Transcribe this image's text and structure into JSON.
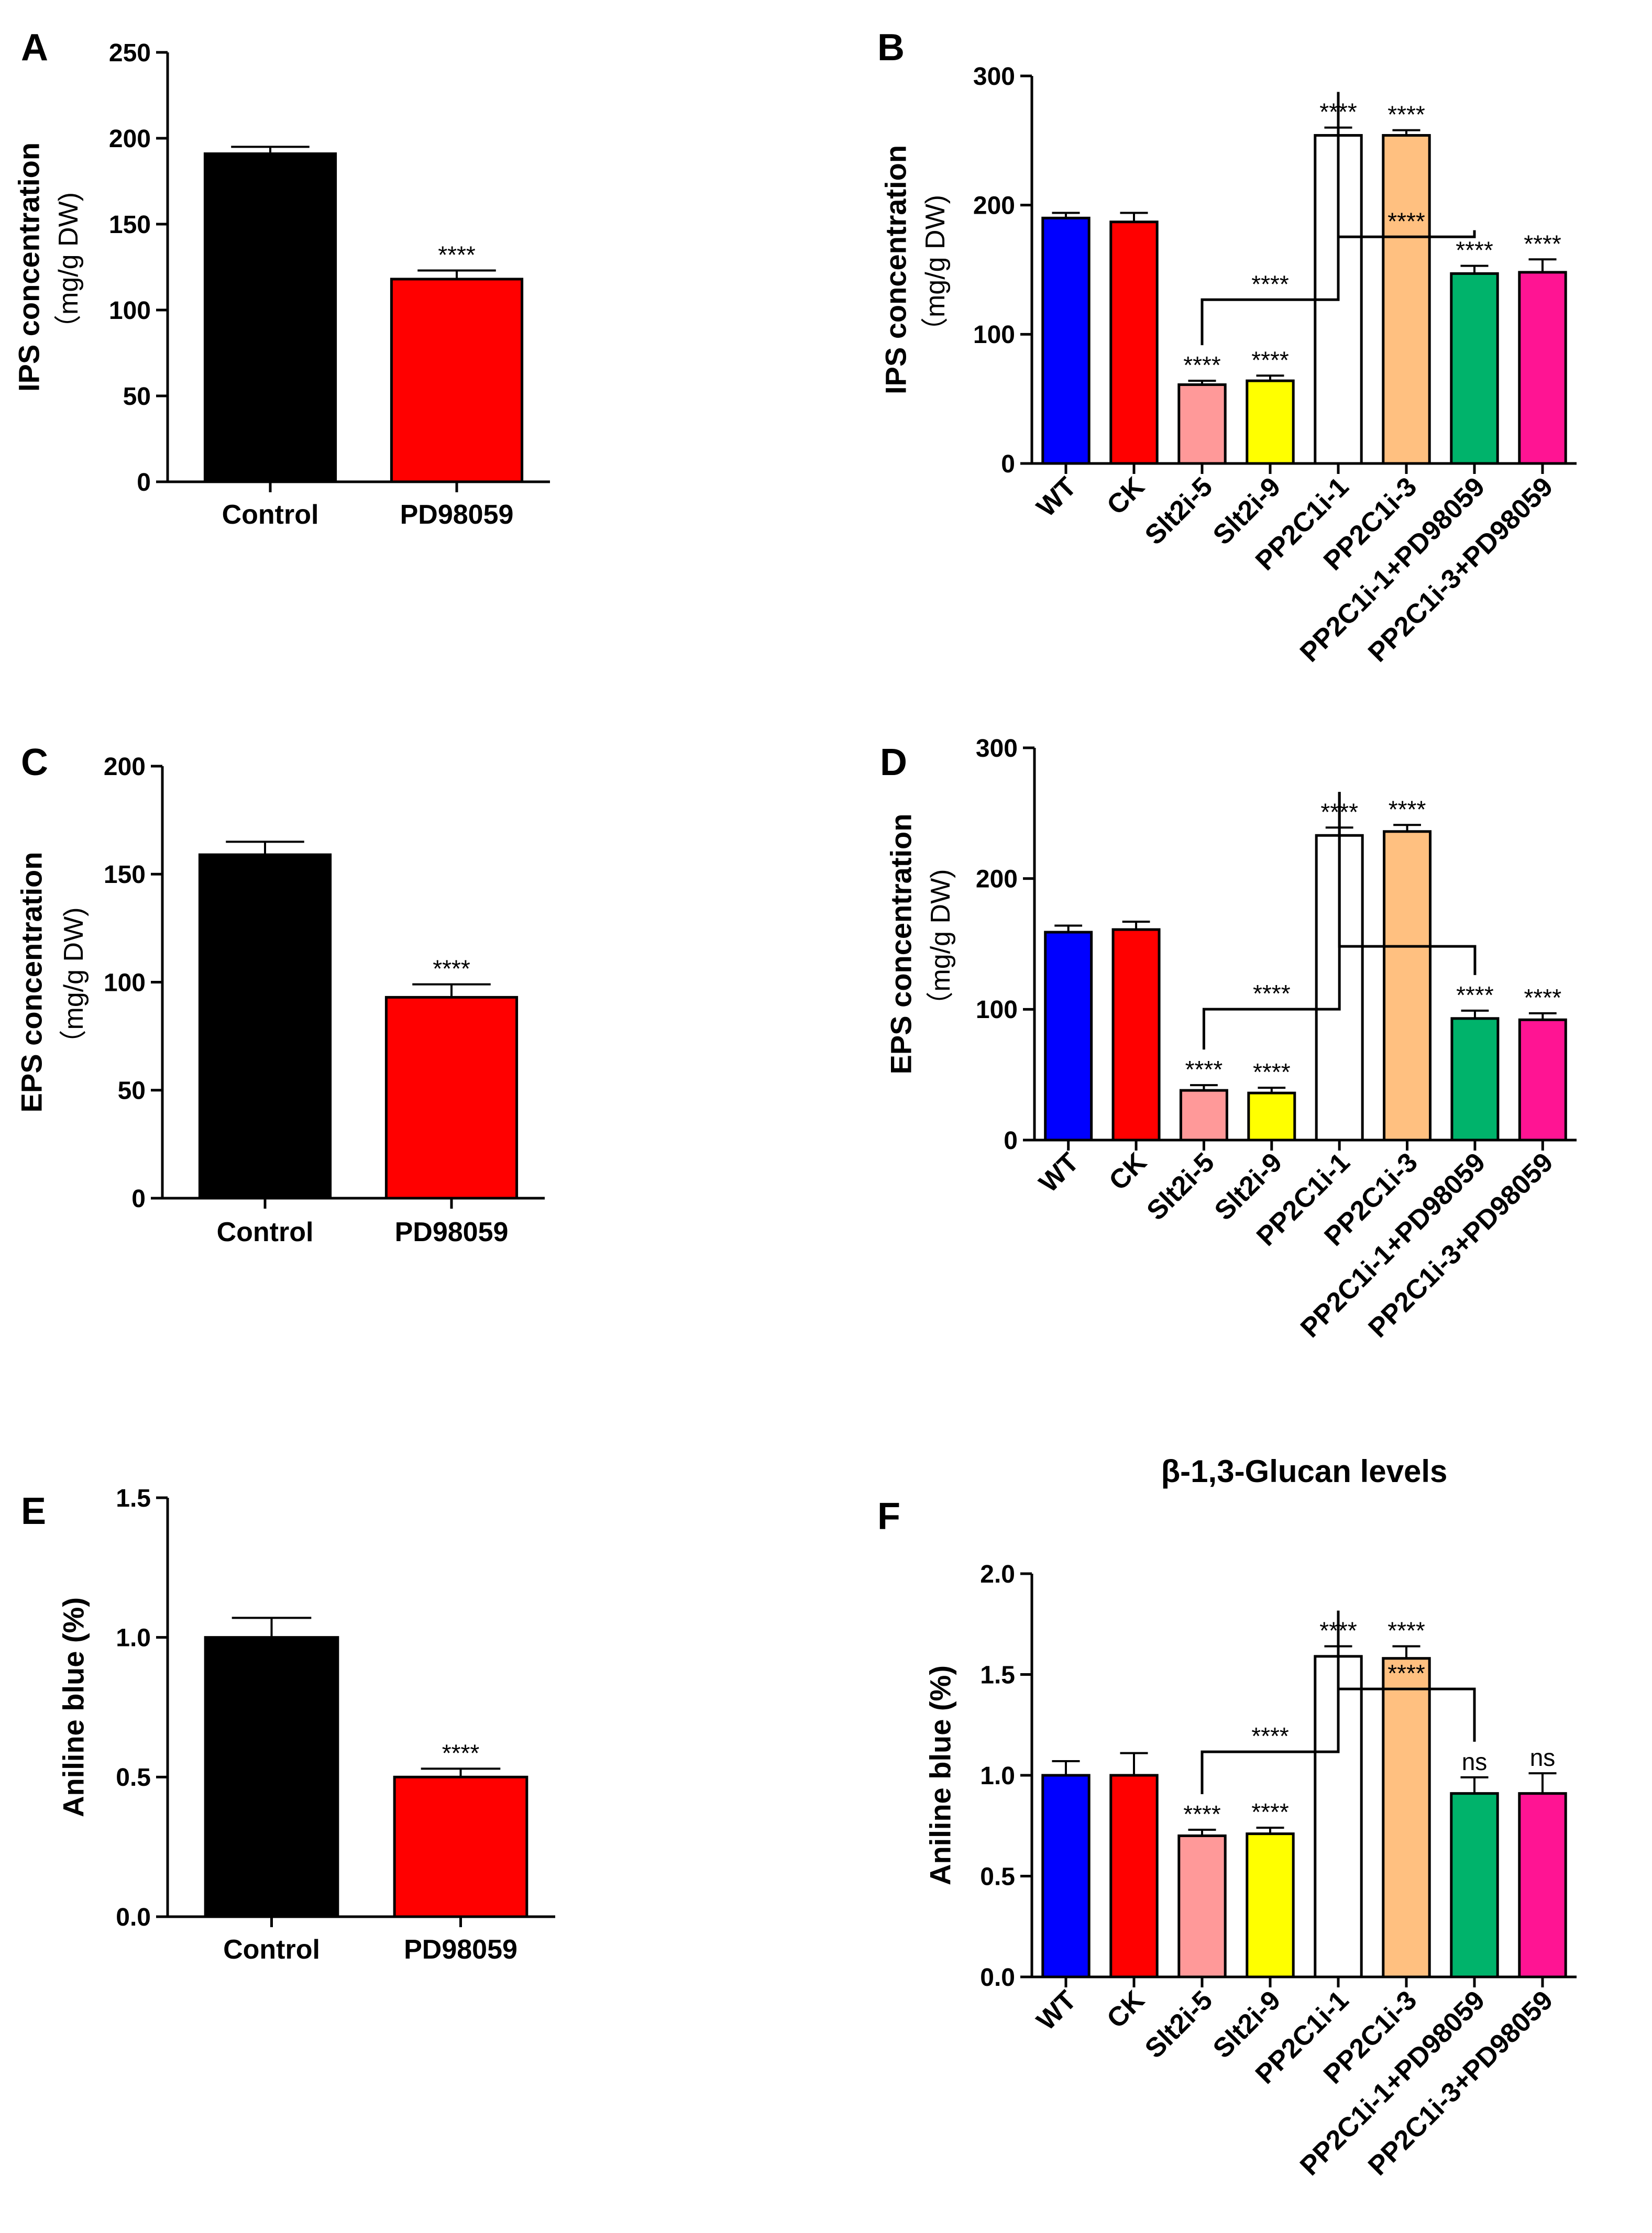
{
  "chart_data": [
    {
      "panel": "A",
      "type": "bar",
      "ylabel": "IPS concentration",
      "ylabel_sub": "（mg/g DW)",
      "ylim": [
        0,
        250
      ],
      "yticks": [
        0,
        50,
        100,
        150,
        200,
        250
      ],
      "categories": [
        "Control",
        "PD98059"
      ],
      "values": [
        191,
        118
      ],
      "errors": [
        4,
        5
      ],
      "colors": [
        "#000000",
        "#ff0000"
      ],
      "annotations": [
        "",
        "****"
      ]
    },
    {
      "panel": "B",
      "type": "bar",
      "ylabel": "IPS concentration",
      "ylabel_sub": "（mg/g DW)",
      "ylim": [
        0,
        300
      ],
      "yticks": [
        0,
        100,
        200,
        300
      ],
      "categories": [
        "WT",
        "CK",
        "Slt2i-5",
        "Slt2i-9",
        "PP2C1i-1",
        "PP2C1i-3",
        "PP2C1i-1+PD98059",
        "PP2C1i-3+PD98059"
      ],
      "values": [
        190,
        187,
        61,
        64,
        254,
        254,
        147,
        148
      ],
      "errors": [
        4,
        7,
        3,
        4,
        6,
        4,
        6,
        10
      ],
      "colors": [
        "#0000ff",
        "#ff0000",
        "#ff9999",
        "#ffff00",
        "#ffffff",
        "#ffc080",
        "#00b36b",
        "#ff1493"
      ],
      "annotations": [
        "",
        "",
        "****",
        "****",
        "****",
        "****",
        "****",
        "****"
      ],
      "brackets": [
        {
          "from": 2,
          "to": 4,
          "label": "****"
        },
        {
          "from": 4,
          "to": 6,
          "label": "****"
        }
      ]
    },
    {
      "panel": "C",
      "type": "bar",
      "ylabel": "EPS concentration",
      "ylabel_sub": "（mg/g DW)",
      "ylim": [
        0,
        200
      ],
      "yticks": [
        0,
        50,
        100,
        150,
        200
      ],
      "categories": [
        "Control",
        "PD98059"
      ],
      "values": [
        159,
        93
      ],
      "errors": [
        6,
        6
      ],
      "colors": [
        "#000000",
        "#ff0000"
      ],
      "annotations": [
        "",
        "****"
      ]
    },
    {
      "panel": "D",
      "type": "bar",
      "ylabel": "EPS concentration",
      "ylabel_sub": "（mg/g DW)",
      "ylim": [
        0,
        300
      ],
      "yticks": [
        0,
        100,
        200,
        300
      ],
      "categories": [
        "WT",
        "CK",
        "Slt2i-5",
        "Slt2i-9",
        "PP2C1i-1",
        "PP2C1i-3",
        "PP2C1i-1+PD98059",
        "PP2C1i-3+PD98059"
      ],
      "values": [
        159,
        161,
        38,
        36,
        233,
        236,
        93,
        92
      ],
      "errors": [
        5,
        6,
        4,
        4,
        6,
        5,
        6,
        5
      ],
      "colors": [
        "#0000ff",
        "#ff0000",
        "#ff9999",
        "#ffff00",
        "#ffffff",
        "#ffc080",
        "#00b36b",
        "#ff1493"
      ],
      "annotations": [
        "",
        "",
        "****",
        "****",
        "****",
        "****",
        "****",
        "****"
      ],
      "brackets": [
        {
          "from": 2,
          "to": 4,
          "label": "****"
        },
        {
          "from": 4,
          "to": 6,
          "label": ""
        }
      ]
    },
    {
      "panel": "E",
      "type": "bar",
      "ylabel": "Aniline blue (%)",
      "ylabel_sub": "",
      "ylim": [
        0,
        1.5
      ],
      "yticks": [
        "0.0",
        "0.5",
        "1.0",
        "1.5"
      ],
      "categories": [
        "Control",
        "PD98059"
      ],
      "values": [
        1.0,
        0.5
      ],
      "errors": [
        0.07,
        0.03
      ],
      "colors": [
        "#000000",
        "#ff0000"
      ],
      "annotations": [
        "",
        "****"
      ]
    },
    {
      "panel": "F",
      "type": "bar",
      "title": "β-1,3-Glucan levels",
      "ylabel": "Aniline blue (%)",
      "ylabel_sub": "",
      "ylim": [
        0,
        2.0
      ],
      "yticks": [
        "0.0",
        "0.5",
        "1.0",
        "1.5",
        "2.0"
      ],
      "categories": [
        "WT",
        "CK",
        "Slt2i-5",
        "Slt2i-9",
        "PP2C1i-1",
        "PP2C1i-3",
        "PP2C1i-1+PD98059",
        "PP2C1i-3+PD98059"
      ],
      "values": [
        1.0,
        1.0,
        0.7,
        0.71,
        1.59,
        1.58,
        0.91,
        0.91
      ],
      "errors": [
        0.07,
        0.11,
        0.03,
        0.03,
        0.05,
        0.06,
        0.08,
        0.1
      ],
      "colors": [
        "#0000ff",
        "#ff0000",
        "#ff9999",
        "#ffff00",
        "#ffffff",
        "#ffc080",
        "#00b36b",
        "#ff1493"
      ],
      "annotations": [
        "",
        "",
        "****",
        "****",
        "****",
        "****",
        "ns",
        "ns"
      ],
      "brackets": [
        {
          "from": 2,
          "to": 4,
          "label": "****"
        },
        {
          "from": 4,
          "to": 6,
          "label": "****"
        }
      ]
    }
  ]
}
